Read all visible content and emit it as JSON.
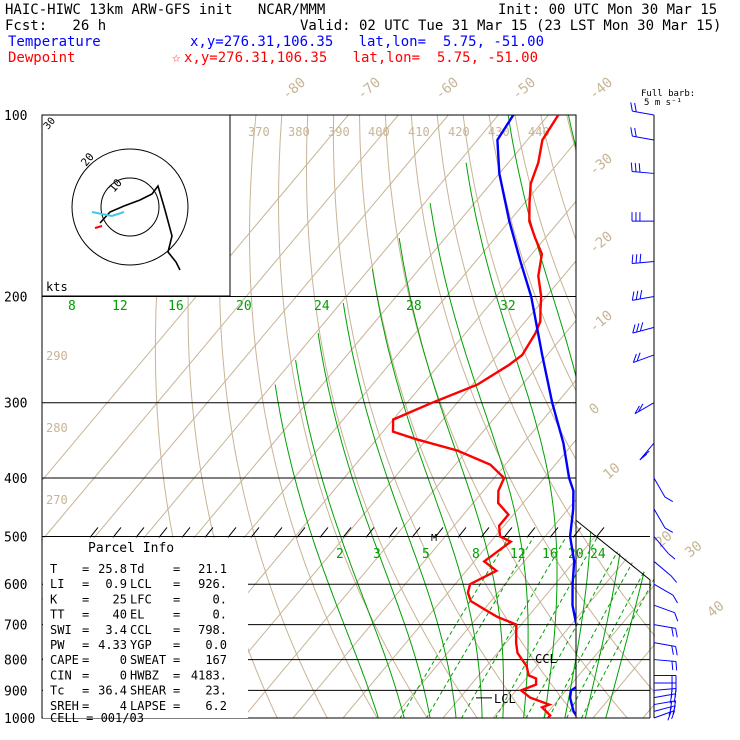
{
  "header": {
    "line1_left": "HAIC-HIWC 13km ARW-GFS init   NCAR/MMM",
    "line1_right": "Init: 00 UTC Mon 30 Mar 15",
    "line2_left": "Fcst:   26 h",
    "line2_right": "Valid: 02 UTC Tue 31 Mar 15 (23 LST Mon 30 Mar 15)",
    "line3_label": "Temperature",
    "line3_coords": "x,y=276.31,106.35   lat,lon=  5.75, -51.00",
    "line4_label": "Dewpoint",
    "line4_coords": "x,y=276.31,106.35   lat,lon=  5.75, -51.00",
    "star": "☆"
  },
  "barb_legend": {
    "line1": "Full barb:",
    "line2": "5 m s⁻¹"
  },
  "parcel_info": {
    "title": "Parcel Info",
    "rows": [
      {
        "l1": "T",
        "v1": "25.8",
        "l2": "Td",
        "v2": "21.1"
      },
      {
        "l1": "LI",
        "v1": "0.9",
        "l2": "LCL",
        "v2": "926."
      },
      {
        "l1": "K",
        "v1": "25",
        "l2": "LFC",
        "v2": "0."
      },
      {
        "l1": "TT",
        "v1": "40",
        "l2": "EL",
        "v2": "0."
      },
      {
        "l1": "SWI",
        "v1": "3.4",
        "l2": "CCL",
        "v2": "798."
      },
      {
        "l1": "PW",
        "v1": "4.33",
        "l2": "YGP",
        "v2": "0.0"
      },
      {
        "l1": "CAPE",
        "v1": "0",
        "l2": "SWEAT",
        "v2": "167"
      },
      {
        "l1": "CIN",
        "v1": "0",
        "l2": "HWBZ",
        "v2": "4183."
      },
      {
        "l1": "Tc",
        "v1": "36.4",
        "l2": "SHEAR",
        "v2": "23."
      },
      {
        "l1": "SREH",
        "v1": "4",
        "l2": "LAPSE",
        "v2": "6.2"
      }
    ],
    "cell": "CELL = 001/03"
  },
  "colors": {
    "temperature": "#0000ff",
    "dewpoint": "#ff0000",
    "dry_adiabat": "#c8b496",
    "moist_adiabat": "#00a000",
    "mixing_ratio": "#00a000",
    "isobar": "#000000",
    "hodo_shear": "#40c8e8"
  },
  "chart_data": {
    "type": "line",
    "title": "",
    "xlabel": "",
    "ylabel": "",
    "pressure_levels": [
      "100",
      "200",
      "300",
      "400",
      "500",
      "600",
      "700",
      "800",
      "900",
      "1000"
    ],
    "skewed_temperature_ticks": [
      "-80",
      "-70",
      "-60",
      "-50",
      "-40",
      "-30",
      "-20",
      "-10",
      "0",
      "10",
      "20",
      "30",
      "40"
    ],
    "theta_labels": [
      "370",
      "380",
      "390",
      "400",
      "410",
      "420",
      "430",
      "440"
    ],
    "theta_side_labels": [
      "290",
      "280",
      "270"
    ],
    "mixing_ratio_upper": [
      "8",
      "12",
      "16",
      "20",
      "24",
      "28",
      "32"
    ],
    "mixing_ratio_lower": [
      "2",
      "3",
      "5",
      "8",
      "12",
      "16",
      "20",
      "24"
    ],
    "level_labels": {
      "lcl": "LCL",
      "ccl": "CCL",
      "mark_500": "M"
    },
    "series": [
      {
        "name": "Temperature",
        "p": [
          1000,
          975,
          950,
          925,
          900,
          880,
          860,
          850,
          820,
          800,
          750,
          700,
          650,
          600,
          550,
          500,
          450,
          420,
          400,
          350,
          300,
          250,
          200,
          175,
          150,
          125,
          110,
          100
        ],
        "t": [
          27,
          25,
          23.5,
          22,
          21,
          21.8,
          22.5,
          22,
          20,
          18,
          15,
          11,
          7,
          3.5,
          0,
          -5,
          -9,
          -12,
          -15,
          -22,
          -31,
          -41,
          -53,
          -61,
          -70,
          -80,
          -86,
          -87
        ]
      },
      {
        "name": "Dewpoint",
        "p": [
          1000,
          990,
          960,
          950,
          925,
          900,
          880,
          860,
          850,
          820,
          800,
          780,
          750,
          700,
          680,
          660,
          640,
          620,
          600,
          570,
          550,
          530,
          510,
          500,
          480,
          460,
          440,
          420,
          400,
          380,
          360,
          345,
          335,
          320,
          300,
          280,
          260,
          250,
          230,
          220,
          210,
          200,
          185,
          170,
          160,
          150,
          140,
          130,
          120,
          110,
          100
        ],
        "td": [
          21,
          21,
          18,
          19,
          14,
          11,
          13,
          12,
          10,
          8,
          6,
          4,
          2,
          -1,
          -6,
          -10,
          -14,
          -16,
          -17,
          -14,
          -18,
          -17,
          -16,
          -19,
          -21,
          -21,
          -25,
          -27,
          -28,
          -33,
          -42,
          -52,
          -58,
          -60,
          -55,
          -49,
          -46,
          -45,
          -46,
          -47,
          -49,
          -51,
          -55,
          -58,
          -62,
          -66,
          -69,
          -72,
          -74,
          -77,
          -78
        ]
      }
    ],
    "annotations": {
      "lcl_hpa": 926,
      "ccl_hpa": 798
    },
    "hodograph": {
      "ring_label": "20",
      "ring_labels": [
        "20",
        "10"
      ],
      "units": "kts"
    },
    "wind_barbs": [
      {
        "p": 1000,
        "spd": 15,
        "dir": 110
      },
      {
        "p": 975,
        "spd": 20,
        "dir": 105
      },
      {
        "p": 950,
        "spd": 20,
        "dir": 100
      },
      {
        "p": 925,
        "spd": 20,
        "dir": 100
      },
      {
        "p": 900,
        "spd": 15,
        "dir": 95
      },
      {
        "p": 875,
        "spd": 15,
        "dir": 90
      },
      {
        "p": 850,
        "spd": 15,
        "dir": 90
      },
      {
        "p": 800,
        "spd": 15,
        "dir": 85
      },
      {
        "p": 750,
        "spd": 15,
        "dir": 80
      },
      {
        "p": 700,
        "spd": 15,
        "dir": 80
      },
      {
        "p": 650,
        "spd": 10,
        "dir": 70
      },
      {
        "p": 600,
        "spd": 10,
        "dir": 60
      },
      {
        "p": 550,
        "spd": 10,
        "dir": 50
      },
      {
        "p": 500,
        "spd": 10,
        "dir": 40
      },
      {
        "p": 450,
        "spd": 10,
        "dir": 30
      },
      {
        "p": 400,
        "spd": 10,
        "dir": 30
      },
      {
        "p": 350,
        "spd": 15,
        "dir": 320
      },
      {
        "p": 300,
        "spd": 15,
        "dir": 300
      },
      {
        "p": 250,
        "spd": 20,
        "dir": 290
      },
      {
        "p": 225,
        "spd": 25,
        "dir": 285
      },
      {
        "p": 200,
        "spd": 25,
        "dir": 280
      },
      {
        "p": 175,
        "spd": 25,
        "dir": 275
      },
      {
        "p": 150,
        "spd": 25,
        "dir": 270
      },
      {
        "p": 125,
        "spd": 25,
        "dir": 265
      },
      {
        "p": 110,
        "spd": 20,
        "dir": 260
      },
      {
        "p": 100,
        "spd": 20,
        "dir": 260
      }
    ]
  }
}
